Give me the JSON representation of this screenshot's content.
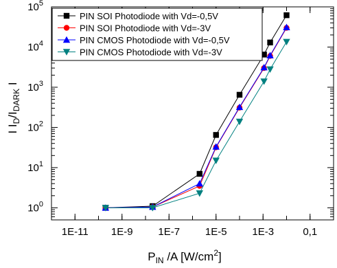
{
  "chart_data": {
    "type": "line",
    "x_scale": "log",
    "y_scale": "log",
    "xlabel": {
      "main": "P",
      "sub": "IN",
      "rest": " /A [W/cm",
      "sup": "2",
      "close": "]"
    },
    "ylabel": {
      "pre": "I I",
      "sub1": "D",
      "mid": "/I",
      "sub2": "DARK",
      "post": " I"
    },
    "xlim": [
      1e-12,
      1
    ],
    "ylim": [
      0.5,
      100000.0
    ],
    "x_ticks": [
      {
        "value": 1e-11,
        "label": "1E-11"
      },
      {
        "value": 1e-09,
        "label": "1E-9"
      },
      {
        "value": 1e-07,
        "label": "1E-7"
      },
      {
        "value": 1e-05,
        "label": "1E-5"
      },
      {
        "value": 0.001,
        "label": "1E-3"
      },
      {
        "value": 0.1,
        "label": "0,1"
      }
    ],
    "y_ticks": [
      {
        "value": 1,
        "base": "10",
        "exp": "0"
      },
      {
        "value": 10,
        "base": "10",
        "exp": "1"
      },
      {
        "value": 100,
        "base": "10",
        "exp": "2"
      },
      {
        "value": 1000,
        "base": "10",
        "exp": "3"
      },
      {
        "value": 10000,
        "base": "10",
        "exp": "4"
      },
      {
        "value": 100000,
        "base": "10",
        "exp": "5"
      }
    ],
    "legend_position": "top-left",
    "x": [
      2e-10,
      2e-08,
      2e-06,
      1e-05,
      0.0001,
      0.0011,
      0.002,
      0.01
    ],
    "series": [
      {
        "name": "PIN SOI Photodiode with Vd=-0,5V",
        "color": "#000000",
        "marker": "square",
        "values": [
          1.0,
          1.1,
          7.0,
          65,
          650,
          6500,
          13000,
          62000
        ]
      },
      {
        "name": "PIN SOI Photodiode with Vd=-3V",
        "color": "#ff0000",
        "marker": "circle",
        "values": [
          1.0,
          1.05,
          3.5,
          32,
          310,
          3000,
          6000,
          30000
        ]
      },
      {
        "name": "PIN CMOS Photodiode with Vd=-0,5V",
        "color": "#0000ff",
        "marker": "triangle-up",
        "values": [
          1.0,
          1.05,
          4.0,
          33,
          320,
          3100,
          6200,
          31000
        ]
      },
      {
        "name": "PIN CMOS Photodiode with Vd=-3V",
        "color": "#008080",
        "marker": "triangle-down",
        "values": [
          1.0,
          1.0,
          2.3,
          15,
          140,
          1400,
          2800,
          13500
        ]
      }
    ]
  }
}
